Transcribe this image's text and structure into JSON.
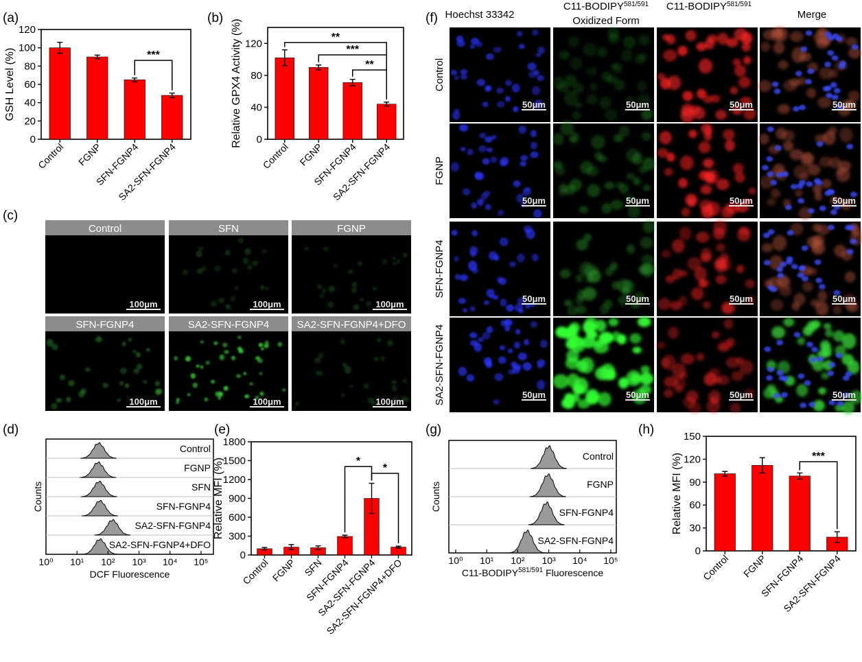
{
  "colors": {
    "bar": "#ff0000",
    "hist_fill": "#9a9a9a",
    "micro_bg": "#000000",
    "micro_header": "#8c8c8c"
  },
  "panel_labels": {
    "a": "(a)",
    "b": "(b)",
    "c": "(c)",
    "d": "(d)",
    "e": "(e)",
    "f": "(f)",
    "g": "(g)",
    "h": "(h)"
  },
  "scale_bar_100": "100μm",
  "scale_bar_50": "50μm",
  "panel_c": {
    "headers": [
      "Control",
      "SFN",
      "FGNP",
      "SFN-FGNP4",
      "SA2-SFN-FGNP4",
      "SA2-SFN-FGNP4+DFO"
    ],
    "signal": [
      "none",
      "faint",
      "faint",
      "weak",
      "strong",
      "faint"
    ]
  },
  "panel_f": {
    "columns": [
      "Hoechst 33342",
      "C11-BODIPY",
      "Oxidized Form",
      "C11-BODIPY",
      "Merge"
    ],
    "superscript": "581/591",
    "rows": [
      "Control",
      "FGNP",
      "SFN-FGNP4",
      "SA2-SFN-FGNP4"
    ]
  },
  "chart_data": [
    {
      "id": "a",
      "type": "bar",
      "ylabel": "GSH Level (%)",
      "ylim": [
        0,
        120
      ],
      "yticks": [
        0,
        20,
        40,
        60,
        80,
        100,
        120
      ],
      "categories": [
        "Control",
        "FGNP",
        "SFN-FGNP4",
        "SA2-SFN-FGNP4"
      ],
      "values": [
        100,
        90,
        65,
        48
      ],
      "errors": [
        6,
        2,
        2,
        2.5
      ],
      "significance": [
        {
          "from": 2,
          "to": 3,
          "label": "***"
        }
      ]
    },
    {
      "id": "b",
      "type": "bar",
      "ylabel": "Relative GPX4 Activity (%)",
      "ylim": [
        0,
        140
      ],
      "yticks": [
        0,
        40,
        80,
        120
      ],
      "categories": [
        "Control",
        "FGNP",
        "SFN-FGNP4",
        "SA2-SFN-FGNP4"
      ],
      "values": [
        102,
        90,
        71,
        44
      ],
      "errors": [
        10,
        3,
        4,
        2.5
      ],
      "significance": [
        {
          "from": 0,
          "to": 3,
          "label": "**"
        },
        {
          "from": 1,
          "to": 3,
          "label": "***"
        },
        {
          "from": 2,
          "to": 3,
          "label": "**"
        }
      ]
    },
    {
      "id": "d",
      "type": "histogram",
      "xlabel": "DCF Fluorescence",
      "ylabel": "Counts",
      "xticks": [
        "10⁰",
        "10¹",
        "10²",
        "10³",
        "10⁴",
        "10⁵"
      ],
      "series": [
        {
          "name": "Control",
          "peak": 50
        },
        {
          "name": "FGNP",
          "peak": 48
        },
        {
          "name": "SFN",
          "peak": 52
        },
        {
          "name": "SFN-FGNP4",
          "peak": 55
        },
        {
          "name": "SA2-SFN-FGNP4",
          "peak": 140
        },
        {
          "name": "SA2-SFN-FGNP4+DFO",
          "peak": 55
        }
      ]
    },
    {
      "id": "e",
      "type": "bar",
      "ylabel": "Relative MFI (%)",
      "ylim": [
        0,
        1800
      ],
      "yticks": [
        0,
        300,
        600,
        900,
        1200,
        1500,
        1800
      ],
      "categories": [
        "Control",
        "FGNP",
        "SFN",
        "SFN-FGNP4",
        "SA2-SFN-FGNP4",
        "SA2-SFN-FGNP4+DFO"
      ],
      "values": [
        100,
        125,
        115,
        295,
        900,
        125
      ],
      "errors": [
        20,
        40,
        30,
        20,
        240,
        15
      ],
      "significance": [
        {
          "from": 3,
          "to": 4,
          "label": "*"
        },
        {
          "from": 4,
          "to": 5,
          "label": "*"
        }
      ]
    },
    {
      "id": "g",
      "type": "histogram",
      "xlabel": "C11-BODIPY",
      "xlabel_sup": "581/591",
      "xlabel_tail": "Fluorescence",
      "ylabel": "Counts",
      "xticks": [
        "10⁰",
        "10¹",
        "10²",
        "10³",
        "10⁴",
        "10⁵"
      ],
      "series": [
        {
          "name": "Control",
          "peak": 1000
        },
        {
          "name": "FGNP",
          "peak": 950
        },
        {
          "name": "SFN-FGNP4",
          "peak": 850
        },
        {
          "name": "SA2-SFN-FGNP4",
          "peak": 200
        }
      ]
    },
    {
      "id": "h",
      "type": "bar",
      "ylabel": "Relative MFI (%)",
      "ylim": [
        0,
        150
      ],
      "yticks": [
        0,
        30,
        60,
        90,
        120,
        150
      ],
      "categories": [
        "Control",
        "FGNP",
        "SFN-FGNP4",
        "SA2-SFN-FGNP4"
      ],
      "values": [
        101,
        112,
        98,
        18
      ],
      "errors": [
        3,
        10,
        4,
        7
      ],
      "significance": [
        {
          "from": 2,
          "to": 3,
          "label": "***"
        }
      ]
    }
  ]
}
